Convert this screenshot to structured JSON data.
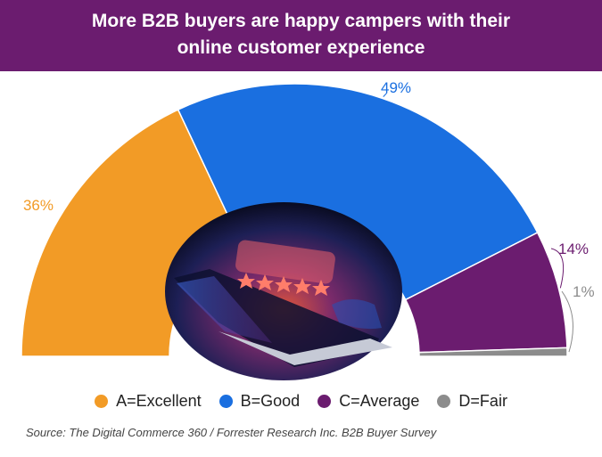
{
  "header": {
    "title_line1": "More B2B buyers are happy campers with their",
    "title_line2": "online customer experience"
  },
  "chart_data": {
    "type": "pie",
    "style": "semi-donut",
    "categories": [
      "A=Excellent",
      "B=Good",
      "C=Average",
      "D=Fair"
    ],
    "values": [
      36,
      49,
      14,
      1
    ],
    "labels": [
      "36%",
      "49%",
      "14%",
      "1%"
    ],
    "colors": [
      "#f29b26",
      "#1a6fe0",
      "#6b1c6f",
      "#8c8c8c"
    ],
    "label_colors": [
      "#f29b26",
      "#1a6fe0",
      "#6b1c6f",
      "#8c8c8c"
    ],
    "legend_position": "bottom"
  },
  "source": "Source: The Digital Commerce 360 / Forrester Research Inc. B2B Buyer Survey"
}
